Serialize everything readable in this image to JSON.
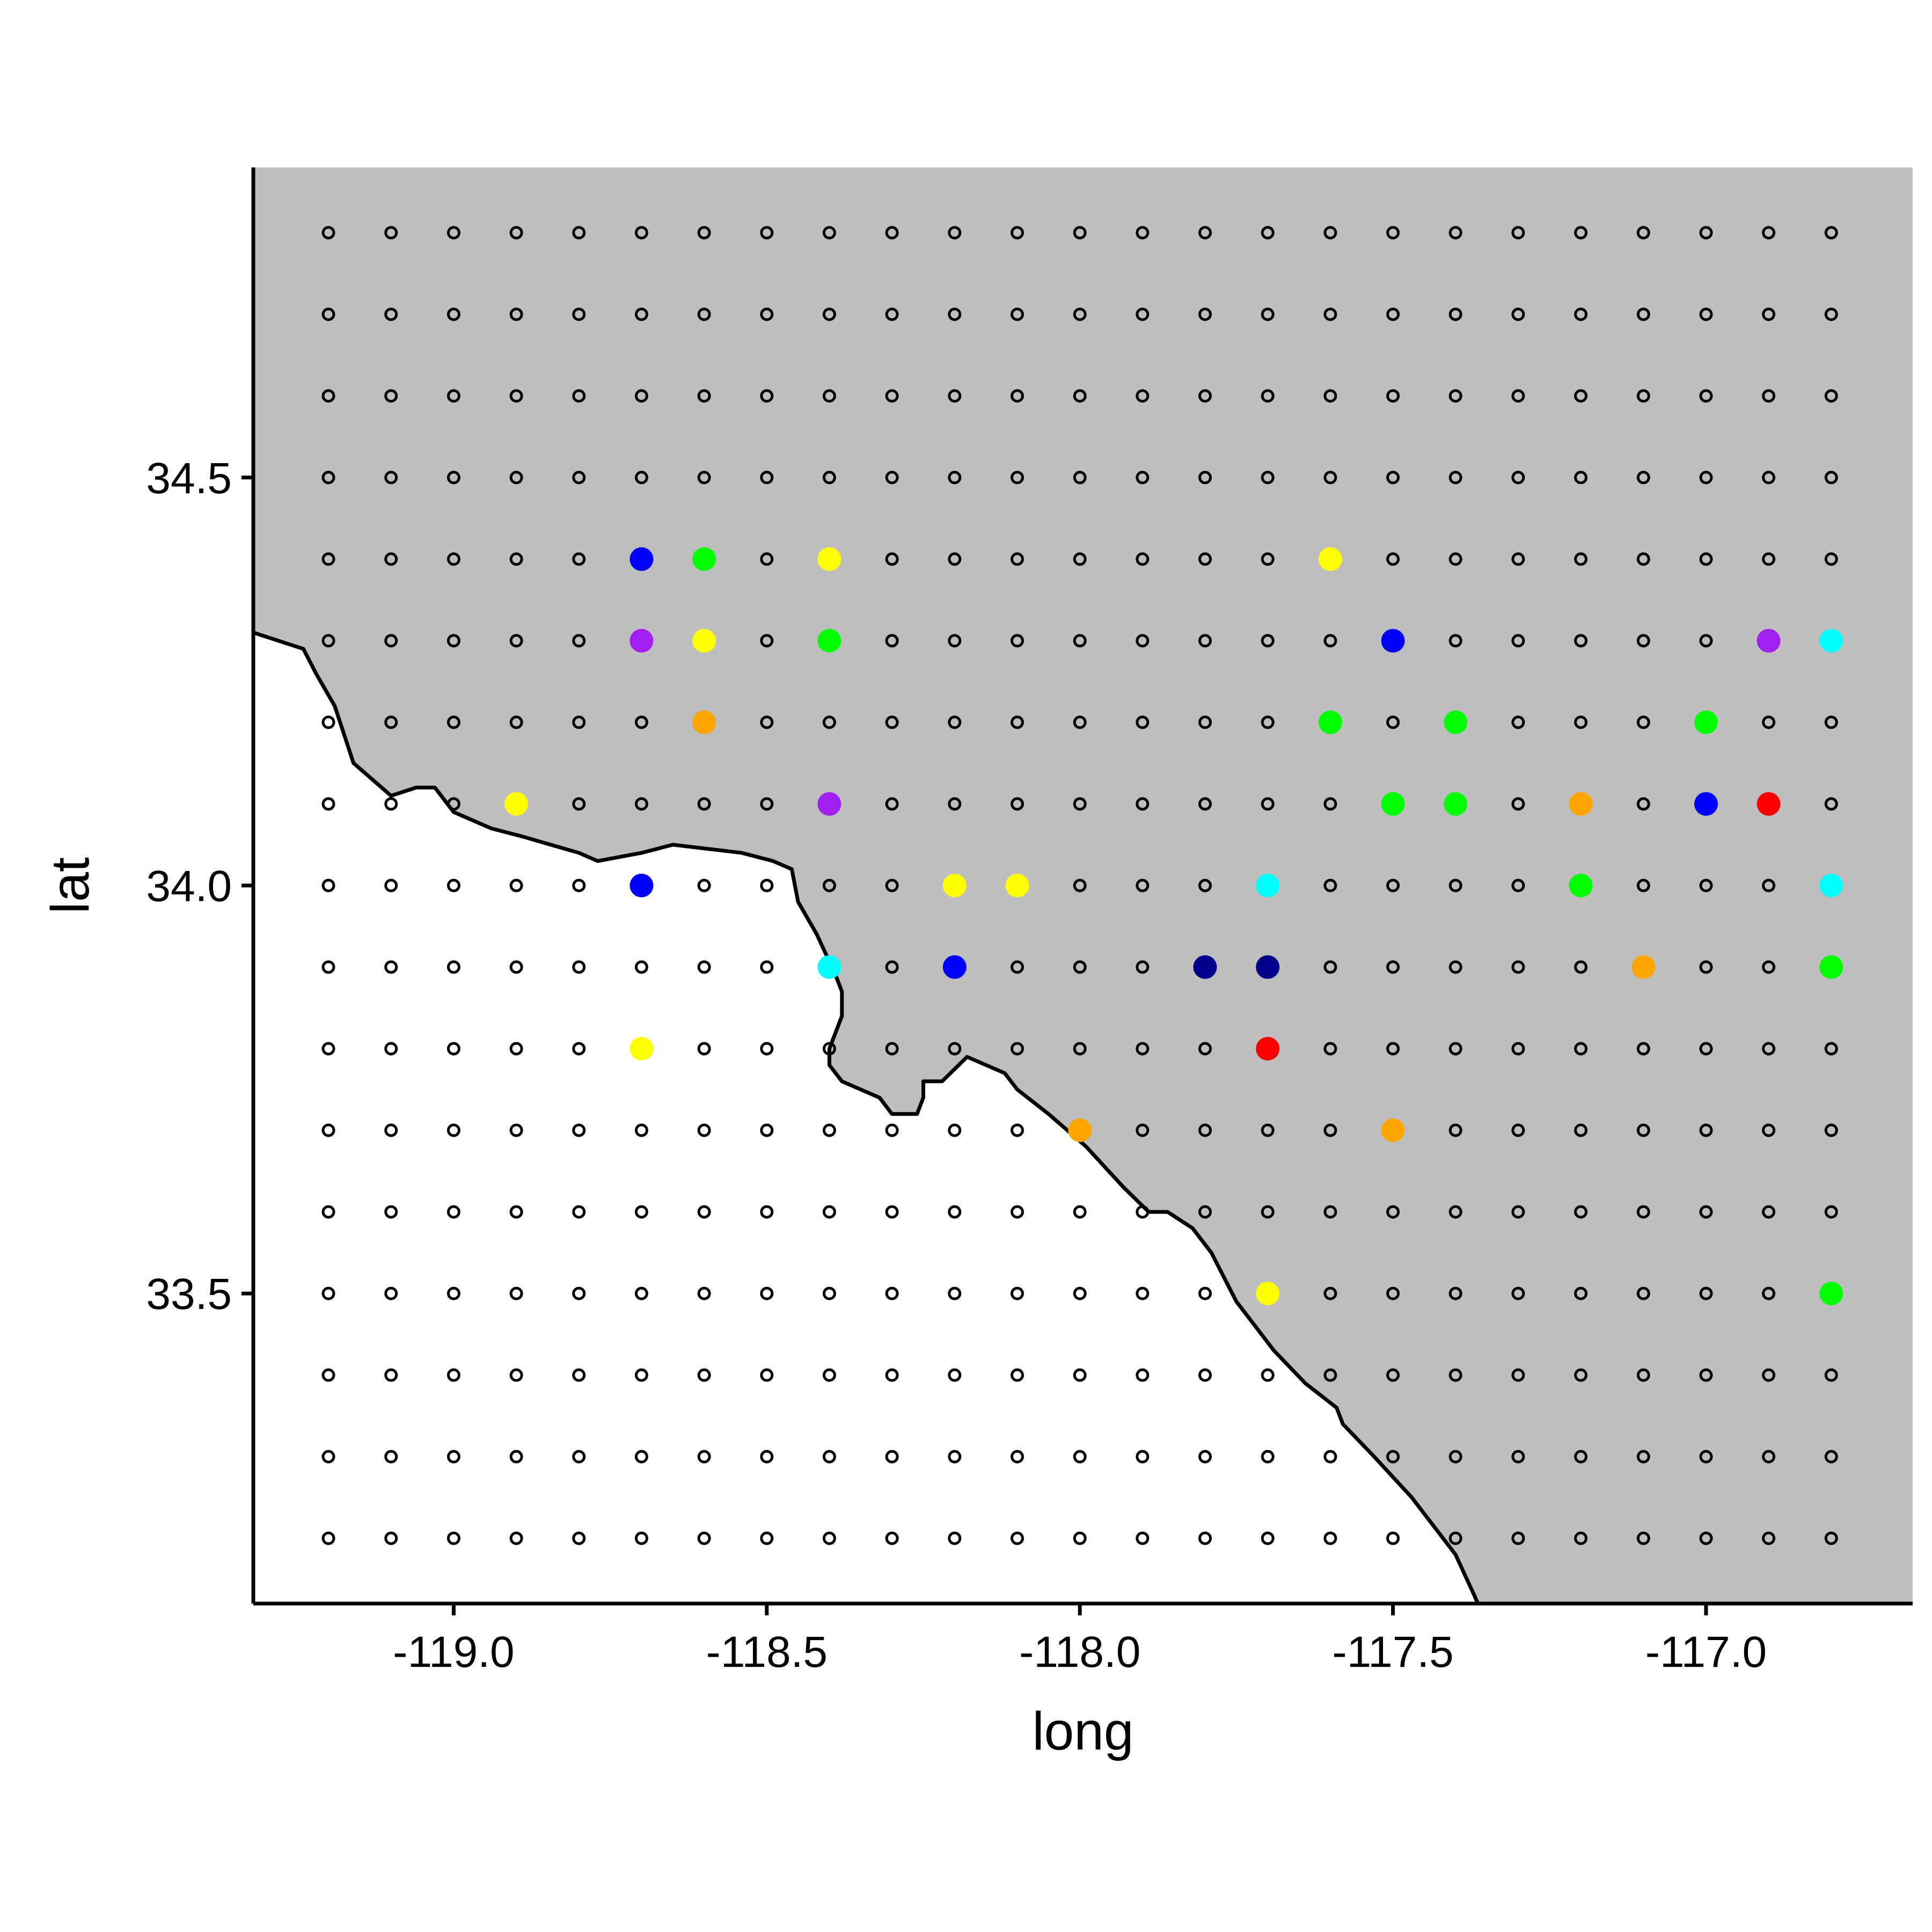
{
  "chart_data": {
    "type": "scatter",
    "title": "",
    "xlabel": "long",
    "ylabel": "lat",
    "xlim": [
      -119.32,
      -116.67
    ],
    "ylim": [
      33.12,
      34.88
    ],
    "x_ticks": [
      "-119.0",
      "-118.5",
      "-118.0",
      "-117.5",
      "-117.0"
    ],
    "y_ticks": [
      "33.5",
      "34.0",
      "34.5"
    ],
    "grid": false,
    "legend": "none",
    "colors": {
      "land": "#bebebe",
      "coastline": "#000000",
      "axis": "#000000",
      "open_marker": "#000000"
    },
    "grid_points": {
      "x_start": -119.2,
      "x_step": 0.1,
      "x_count": 25,
      "y_start": 33.2,
      "y_step": 0.1,
      "y_count": 17,
      "marker": "open-circle"
    },
    "coastline": [
      [
        -119.32,
        34.31
      ],
      [
        -119.24,
        34.29
      ],
      [
        -119.22,
        34.26
      ],
      [
        -119.19,
        34.22
      ],
      [
        -119.16,
        34.15
      ],
      [
        -119.1,
        34.11
      ],
      [
        -119.06,
        34.12
      ],
      [
        -119.03,
        34.12
      ],
      [
        -119.0,
        34.09
      ],
      [
        -118.94,
        34.07
      ],
      [
        -118.89,
        34.06
      ],
      [
        -118.8,
        34.04
      ],
      [
        -118.77,
        34.03
      ],
      [
        -118.7,
        34.04
      ],
      [
        -118.65,
        34.05
      ],
      [
        -118.54,
        34.04
      ],
      [
        -118.49,
        34.03
      ],
      [
        -118.46,
        34.02
      ],
      [
        -118.45,
        33.98
      ],
      [
        -118.42,
        33.94
      ],
      [
        -118.39,
        33.89
      ],
      [
        -118.38,
        33.87
      ],
      [
        -118.38,
        33.84
      ],
      [
        -118.39,
        33.82
      ],
      [
        -118.4,
        33.8
      ],
      [
        -118.4,
        33.78
      ],
      [
        -118.38,
        33.76
      ],
      [
        -118.32,
        33.74
      ],
      [
        -118.3,
        33.72
      ],
      [
        -118.26,
        33.72
      ],
      [
        -118.25,
        33.74
      ],
      [
        -118.25,
        33.76
      ],
      [
        -118.22,
        33.76
      ],
      [
        -118.18,
        33.79
      ],
      [
        -118.12,
        33.77
      ],
      [
        -118.1,
        33.75
      ],
      [
        -118.05,
        33.72
      ],
      [
        -117.99,
        33.68
      ],
      [
        -117.93,
        33.63
      ],
      [
        -117.89,
        33.6
      ],
      [
        -117.86,
        33.6
      ],
      [
        -117.82,
        33.58
      ],
      [
        -117.79,
        33.55
      ],
      [
        -117.75,
        33.49
      ],
      [
        -117.72,
        33.46
      ],
      [
        -117.69,
        33.43
      ],
      [
        -117.64,
        33.39
      ],
      [
        -117.59,
        33.36
      ],
      [
        -117.58,
        33.34
      ],
      [
        -117.53,
        33.3
      ],
      [
        -117.47,
        33.25
      ],
      [
        -117.4,
        33.18
      ],
      [
        -117.37,
        33.13
      ],
      [
        -117.33,
        33.06
      ],
      [
        -117.3,
        33.0
      ],
      [
        -117.27,
        32.94
      ]
    ],
    "highlighted": [
      {
        "x": -118.7,
        "y": 34.4,
        "color": "#0000ff"
      },
      {
        "x": -118.6,
        "y": 34.4,
        "color": "#00ff00"
      },
      {
        "x": -118.4,
        "y": 34.4,
        "color": "#ffff00"
      },
      {
        "x": -117.6,
        "y": 34.4,
        "color": "#ffff00"
      },
      {
        "x": -118.7,
        "y": 34.3,
        "color": "#a020f0"
      },
      {
        "x": -118.6,
        "y": 34.3,
        "color": "#ffff00"
      },
      {
        "x": -118.4,
        "y": 34.3,
        "color": "#00ff00"
      },
      {
        "x": -117.5,
        "y": 34.3,
        "color": "#0000ff"
      },
      {
        "x": -116.9,
        "y": 34.3,
        "color": "#a020f0"
      },
      {
        "x": -116.8,
        "y": 34.3,
        "color": "#00ffff"
      },
      {
        "x": -118.6,
        "y": 34.2,
        "color": "#ffa500"
      },
      {
        "x": -117.6,
        "y": 34.2,
        "color": "#00ff00"
      },
      {
        "x": -117.4,
        "y": 34.2,
        "color": "#00ff00"
      },
      {
        "x": -117.0,
        "y": 34.2,
        "color": "#00ff00"
      },
      {
        "x": -118.9,
        "y": 34.1,
        "color": "#ffff00"
      },
      {
        "x": -118.4,
        "y": 34.1,
        "color": "#a020f0"
      },
      {
        "x": -117.5,
        "y": 34.1,
        "color": "#00ff00"
      },
      {
        "x": -117.4,
        "y": 34.1,
        "color": "#00ff00"
      },
      {
        "x": -117.2,
        "y": 34.1,
        "color": "#ffa500"
      },
      {
        "x": -117.0,
        "y": 34.1,
        "color": "#0000ff"
      },
      {
        "x": -116.9,
        "y": 34.1,
        "color": "#ff0000"
      },
      {
        "x": -118.7,
        "y": 34.0,
        "color": "#0000ff"
      },
      {
        "x": -118.2,
        "y": 34.0,
        "color": "#ffff00"
      },
      {
        "x": -118.1,
        "y": 34.0,
        "color": "#ffff00"
      },
      {
        "x": -117.7,
        "y": 34.0,
        "color": "#00ffff"
      },
      {
        "x": -117.2,
        "y": 34.0,
        "color": "#00ff00"
      },
      {
        "x": -116.8,
        "y": 34.0,
        "color": "#00ffff"
      },
      {
        "x": -118.4,
        "y": 33.9,
        "color": "#00ffff"
      },
      {
        "x": -118.2,
        "y": 33.9,
        "color": "#0000ff"
      },
      {
        "x": -117.8,
        "y": 33.9,
        "color": "#00008b"
      },
      {
        "x": -117.7,
        "y": 33.9,
        "color": "#00008b"
      },
      {
        "x": -117.1,
        "y": 33.9,
        "color": "#ffa500"
      },
      {
        "x": -116.8,
        "y": 33.9,
        "color": "#00ff00"
      },
      {
        "x": -118.7,
        "y": 33.8,
        "color": "#ffff00"
      },
      {
        "x": -117.7,
        "y": 33.8,
        "color": "#ff0000"
      },
      {
        "x": -118.0,
        "y": 33.7,
        "color": "#ffa500"
      },
      {
        "x": -117.5,
        "y": 33.7,
        "color": "#ffa500"
      },
      {
        "x": -117.7,
        "y": 33.5,
        "color": "#ffff00"
      },
      {
        "x": -116.8,
        "y": 33.5,
        "color": "#00ff00"
      }
    ]
  }
}
